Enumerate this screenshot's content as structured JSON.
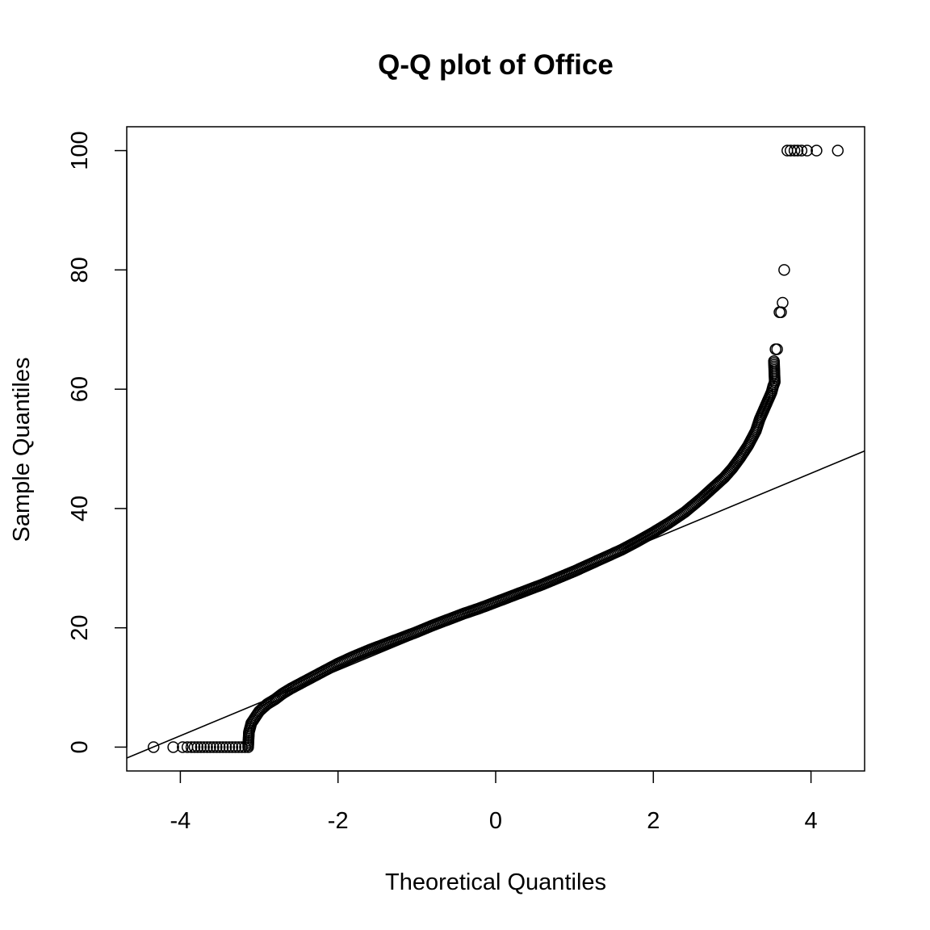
{
  "chart_data": {
    "type": "scatter",
    "title": "Q-Q plot of Office",
    "xlabel": "Theoretical Quantiles",
    "ylabel": "Sample Quantiles",
    "xlim": [
      -4.68,
      4.68
    ],
    "ylim": [
      -4,
      104
    ],
    "xticks": [
      -4,
      -2,
      0,
      2,
      4
    ],
    "xtick_labels": [
      "-4",
      "-2",
      "0",
      "2",
      "4"
    ],
    "yticks": [
      0,
      20,
      40,
      60,
      80,
      100
    ],
    "ytick_labels": [
      "0",
      "20",
      "40",
      "60",
      "80",
      "100"
    ],
    "grid": false,
    "marker": "open-circle",
    "colors": {
      "points": "#000000",
      "line": "#000000",
      "frame": "#000000"
    },
    "reference_line": {
      "intercept": 23.9,
      "slope": 5.5
    },
    "series": [
      {
        "points": [
          [
            -4.34,
            0
          ],
          [
            -4.09,
            0
          ],
          [
            -3.97,
            0
          ],
          [
            -3.91,
            0
          ],
          [
            -3.86,
            0
          ],
          [
            -3.82,
            0
          ],
          [
            -3.78,
            0
          ],
          [
            -3.74,
            0
          ],
          [
            -3.7,
            0
          ],
          [
            -3.66,
            0
          ],
          [
            -3.62,
            0
          ],
          [
            -3.58,
            0
          ],
          [
            -3.54,
            0
          ],
          [
            -3.5,
            0
          ],
          [
            -3.46,
            0
          ],
          [
            -3.42,
            0
          ],
          [
            -3.38,
            0
          ],
          [
            -3.34,
            0
          ],
          [
            -3.3,
            0
          ],
          [
            -3.26,
            0
          ],
          [
            -3.22,
            0
          ],
          [
            -3.18,
            0
          ],
          [
            -3.14,
            0
          ],
          [
            -3.13,
            2.5
          ],
          [
            -3.1,
            4
          ],
          [
            -3.05,
            5
          ],
          [
            -3.0,
            6
          ],
          [
            -2.9,
            7.2
          ],
          [
            -2.8,
            8
          ],
          [
            -2.7,
            9
          ],
          [
            -2.6,
            9.8
          ],
          [
            -2.5,
            10.5
          ],
          [
            -2.4,
            11.2
          ],
          [
            -2.3,
            11.9
          ],
          [
            -2.2,
            12.6
          ],
          [
            -2.1,
            13.3
          ],
          [
            -2.0,
            14
          ],
          [
            -1.8,
            15.2
          ],
          [
            -1.6,
            16.3
          ],
          [
            -1.4,
            17.3
          ],
          [
            -1.2,
            18.3
          ],
          [
            -1.0,
            19.3
          ],
          [
            -0.8,
            20.4
          ],
          [
            -0.6,
            21.4
          ],
          [
            -0.4,
            22.4
          ],
          [
            -0.2,
            23.3
          ],
          [
            0,
            24.3
          ],
          [
            0.2,
            25.3
          ],
          [
            0.4,
            26.3
          ],
          [
            0.6,
            27.3
          ],
          [
            0.8,
            28.4
          ],
          [
            1.0,
            29.5
          ],
          [
            1.2,
            30.7
          ],
          [
            1.4,
            31.9
          ],
          [
            1.6,
            33.1
          ],
          [
            1.8,
            34.5
          ],
          [
            2.0,
            36
          ],
          [
            2.2,
            37.6
          ],
          [
            2.4,
            39.4
          ],
          [
            2.6,
            41.6
          ],
          [
            2.8,
            44
          ],
          [
            2.9,
            45.2
          ],
          [
            3.0,
            46.7
          ],
          [
            3.1,
            48.5
          ],
          [
            3.2,
            50.5
          ],
          [
            3.3,
            53
          ],
          [
            3.35,
            55
          ],
          [
            3.4,
            56.5
          ],
          [
            3.45,
            58
          ],
          [
            3.5,
            59.5
          ],
          [
            3.52,
            60.5
          ],
          [
            3.54,
            61.2
          ],
          [
            3.53,
            64.7
          ],
          [
            3.55,
            66.7
          ],
          [
            3.57,
            66.7
          ],
          [
            3.6,
            72.9
          ],
          [
            3.62,
            72.9
          ],
          [
            3.64,
            74.5
          ],
          [
            3.66,
            80
          ],
          [
            3.7,
            100
          ],
          [
            3.74,
            100
          ],
          [
            3.79,
            100
          ],
          [
            3.83,
            100
          ],
          [
            3.88,
            100
          ],
          [
            3.95,
            100
          ],
          [
            4.07,
            100
          ],
          [
            4.34,
            100
          ]
        ]
      }
    ]
  }
}
